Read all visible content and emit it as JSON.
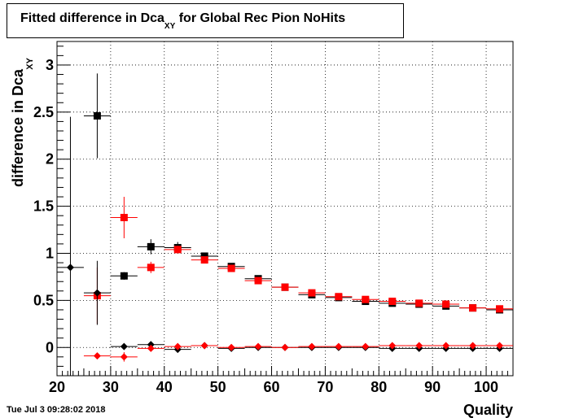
{
  "title_main": "Fitted difference in Dca",
  "title_sub": "XY",
  "title_rest": " for Global Rec Pion NoHits",
  "datestamp": "Tue Jul  3 09:28:02 2018",
  "chart_data": {
    "type": "scatter",
    "title": "Fitted difference in Dca_XY for Global Rec Pion NoHits",
    "xlabel": "Quality",
    "ylabel": "difference in Dca",
    "ylabel_sub": "XY",
    "xlim": [
      20,
      105
    ],
    "ylim": [
      -0.3,
      3.25
    ],
    "x_ticks": [
      20,
      30,
      40,
      50,
      60,
      70,
      80,
      90,
      100
    ],
    "x_tick_labels": [
      "20",
      "30",
      "40",
      "50",
      "60",
      "70",
      "80",
      "90",
      "100"
    ],
    "y_ticks": [
      0,
      0.5,
      1,
      1.5,
      2,
      2.5,
      3
    ],
    "y_tick_labels": [
      "0",
      "0.5",
      "1",
      "1.5",
      "2",
      "2.5",
      "3"
    ],
    "grid": true,
    "bin_half_width": 2.5,
    "series": [
      {
        "marker": "square",
        "color": "#000000",
        "points": [
          {
            "x": 27.5,
            "y": 2.46,
            "err": 0.45
          },
          {
            "x": 32.5,
            "y": 0.76,
            "err": 0.04
          },
          {
            "x": 37.5,
            "y": 1.07,
            "err": 0.08
          },
          {
            "x": 42.5,
            "y": 1.06,
            "err": 0.06
          },
          {
            "x": 47.5,
            "y": 0.97,
            "err": 0.03
          },
          {
            "x": 52.5,
            "y": 0.86,
            "err": 0.02
          },
          {
            "x": 57.5,
            "y": 0.73,
            "err": 0.02
          },
          {
            "x": 62.5,
            "y": 0.64,
            "err": 0.02
          },
          {
            "x": 67.5,
            "y": 0.56,
            "err": 0.02
          },
          {
            "x": 72.5,
            "y": 0.53,
            "err": 0.02
          },
          {
            "x": 77.5,
            "y": 0.49,
            "err": 0.02
          },
          {
            "x": 82.5,
            "y": 0.47,
            "err": 0.02
          },
          {
            "x": 87.5,
            "y": 0.46,
            "err": 0.02
          },
          {
            "x": 92.5,
            "y": 0.44,
            "err": 0.02
          },
          {
            "x": 97.5,
            "y": 0.42,
            "err": 0.02
          },
          {
            "x": 102.5,
            "y": 0.4,
            "err": 0.02
          }
        ]
      },
      {
        "marker": "square",
        "color": "#ff0000",
        "points": [
          {
            "x": 27.5,
            "y": 0.55,
            "err": 0.3
          },
          {
            "x": 32.5,
            "y": 1.38,
            "err": 0.22
          },
          {
            "x": 37.5,
            "y": 0.85,
            "err": 0.06
          },
          {
            "x": 42.5,
            "y": 1.04,
            "err": 0.04
          },
          {
            "x": 47.5,
            "y": 0.93,
            "err": 0.03
          },
          {
            "x": 52.5,
            "y": 0.84,
            "err": 0.02
          },
          {
            "x": 57.5,
            "y": 0.71,
            "err": 0.02
          },
          {
            "x": 62.5,
            "y": 0.64,
            "err": 0.02
          },
          {
            "x": 67.5,
            "y": 0.58,
            "err": 0.02
          },
          {
            "x": 72.5,
            "y": 0.54,
            "err": 0.02
          },
          {
            "x": 77.5,
            "y": 0.51,
            "err": 0.02
          },
          {
            "x": 82.5,
            "y": 0.49,
            "err": 0.02
          },
          {
            "x": 87.5,
            "y": 0.47,
            "err": 0.02
          },
          {
            "x": 92.5,
            "y": 0.46,
            "err": 0.02
          },
          {
            "x": 97.5,
            "y": 0.42,
            "err": 0.02
          },
          {
            "x": 102.5,
            "y": 0.41,
            "err": 0.02
          }
        ]
      },
      {
        "marker": "diamond",
        "color": "#000000",
        "points": [
          {
            "x": 22.5,
            "y": 0.85,
            "err": 1.6
          },
          {
            "x": 27.5,
            "y": 0.58,
            "err": 0.34
          },
          {
            "x": 32.5,
            "y": 0.01,
            "err": 0.02
          },
          {
            "x": 37.5,
            "y": 0.03,
            "err": 0.02
          },
          {
            "x": 42.5,
            "y": -0.02,
            "err": 0.01
          },
          {
            "x": 47.5,
            "y": 0.02,
            "err": 0.01
          },
          {
            "x": 52.5,
            "y": -0.01,
            "err": 0.01
          },
          {
            "x": 57.5,
            "y": 0.0,
            "err": 0.01
          },
          {
            "x": 62.5,
            "y": 0.0,
            "err": 0.01
          },
          {
            "x": 67.5,
            "y": 0.0,
            "err": 0.01
          },
          {
            "x": 72.5,
            "y": 0.0,
            "err": 0.01
          },
          {
            "x": 77.5,
            "y": 0.0,
            "err": 0.01
          },
          {
            "x": 82.5,
            "y": -0.01,
            "err": 0.01
          },
          {
            "x": 87.5,
            "y": -0.01,
            "err": 0.01
          },
          {
            "x": 92.5,
            "y": -0.01,
            "err": 0.01
          },
          {
            "x": 97.5,
            "y": -0.01,
            "err": 0.01
          },
          {
            "x": 102.5,
            "y": -0.01,
            "err": 0.01
          }
        ]
      },
      {
        "marker": "diamond",
        "color": "#ff0000",
        "points": [
          {
            "x": 27.5,
            "y": -0.09,
            "err": 0.03
          },
          {
            "x": 32.5,
            "y": -0.1,
            "err": 0.05
          },
          {
            "x": 37.5,
            "y": -0.01,
            "err": 0.02
          },
          {
            "x": 42.5,
            "y": 0.01,
            "err": 0.01
          },
          {
            "x": 47.5,
            "y": 0.02,
            "err": 0.01
          },
          {
            "x": 52.5,
            "y": 0.0,
            "err": 0.01
          },
          {
            "x": 57.5,
            "y": 0.01,
            "err": 0.01
          },
          {
            "x": 62.5,
            "y": 0.0,
            "err": 0.01
          },
          {
            "x": 67.5,
            "y": 0.01,
            "err": 0.01
          },
          {
            "x": 72.5,
            "y": 0.01,
            "err": 0.01
          },
          {
            "x": 77.5,
            "y": 0.01,
            "err": 0.01
          },
          {
            "x": 82.5,
            "y": 0.02,
            "err": 0.01
          },
          {
            "x": 87.5,
            "y": 0.02,
            "err": 0.01
          },
          {
            "x": 92.5,
            "y": 0.02,
            "err": 0.01
          },
          {
            "x": 97.5,
            "y": 0.02,
            "err": 0.01
          },
          {
            "x": 102.5,
            "y": 0.02,
            "err": 0.01
          }
        ]
      }
    ]
  }
}
